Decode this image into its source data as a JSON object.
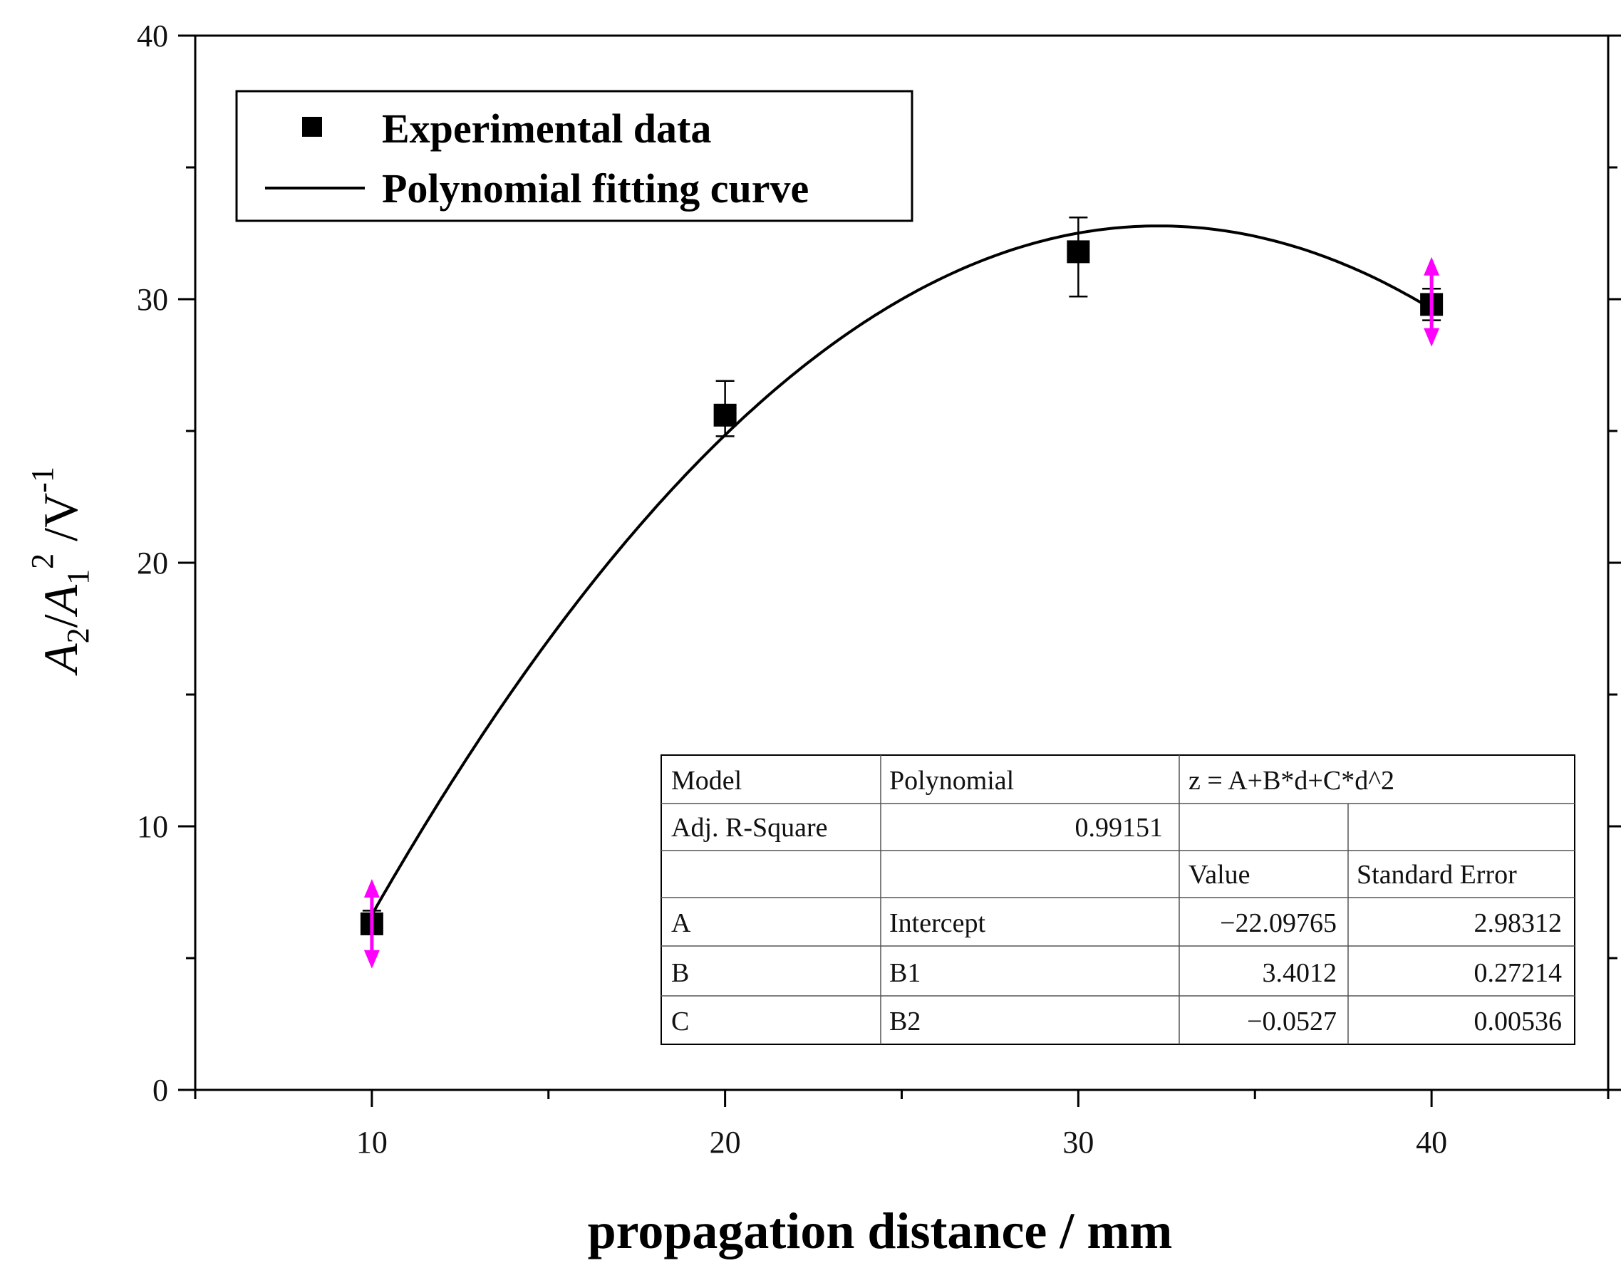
{
  "chart_data": {
    "type": "scatter",
    "title": "",
    "xlabel": "propagation distance / mm",
    "ylabel": {
      "a2": "A",
      "sub2": "2",
      "slash1": "/",
      "a1": "A",
      "sub1": "1",
      "sup2": "2",
      "unit": " /V",
      "supm1": "-1"
    },
    "xlim": [
      5,
      45
    ],
    "ylim": [
      0,
      40
    ],
    "xticks": [
      10,
      20,
      30,
      40
    ],
    "yticks": [
      0,
      10,
      20,
      30,
      40
    ],
    "xtick_labels": [
      "10",
      "20",
      "30",
      "40"
    ],
    "ytick_labels": [
      "0",
      "10",
      "20",
      "30",
      "40"
    ],
    "series": [
      {
        "name": "Experimental data",
        "kind": "scatter",
        "x": [
          10,
          20,
          30,
          40
        ],
        "y": [
          6.3,
          25.6,
          31.8,
          29.8
        ],
        "err_low": [
          0.3,
          0.8,
          1.7,
          0.6
        ],
        "err_high": [
          0.5,
          1.3,
          1.3,
          0.6
        ]
      },
      {
        "name": "Polynomial fitting curve",
        "kind": "line",
        "model": "quadratic",
        "coefficients": {
          "A": -22.09765,
          "B": 3.4012,
          "C": -0.0527
        },
        "x_range": [
          10,
          40
        ]
      }
    ],
    "highlight_arrows": {
      "color": "#ff00ff",
      "points": [
        {
          "x": 10,
          "y": 6.3,
          "y_top": 8.0,
          "y_bottom": 4.6
        },
        {
          "x": 40,
          "y": 29.8,
          "y_top": 31.6,
          "y_bottom": 28.2
        }
      ]
    },
    "legend": {
      "location": "top-left",
      "entries": [
        "Experimental data",
        "Polynomial fitting curve"
      ]
    },
    "fit_table": {
      "rows": [
        [
          "Model",
          "Polynomial",
          "z = A+B*d+C*d^2",
          ""
        ],
        [
          "Adj. R-Square",
          "0.99151",
          "",
          ""
        ],
        [
          "",
          "",
          "Value",
          "Standard Error"
        ],
        [
          "A",
          "Intercept",
          "−22.09765",
          "2.98312"
        ],
        [
          "B",
          "B1",
          "3.4012",
          "0.27214"
        ],
        [
          "C",
          "B2",
          "−0.0527",
          "0.00536"
        ]
      ]
    }
  }
}
